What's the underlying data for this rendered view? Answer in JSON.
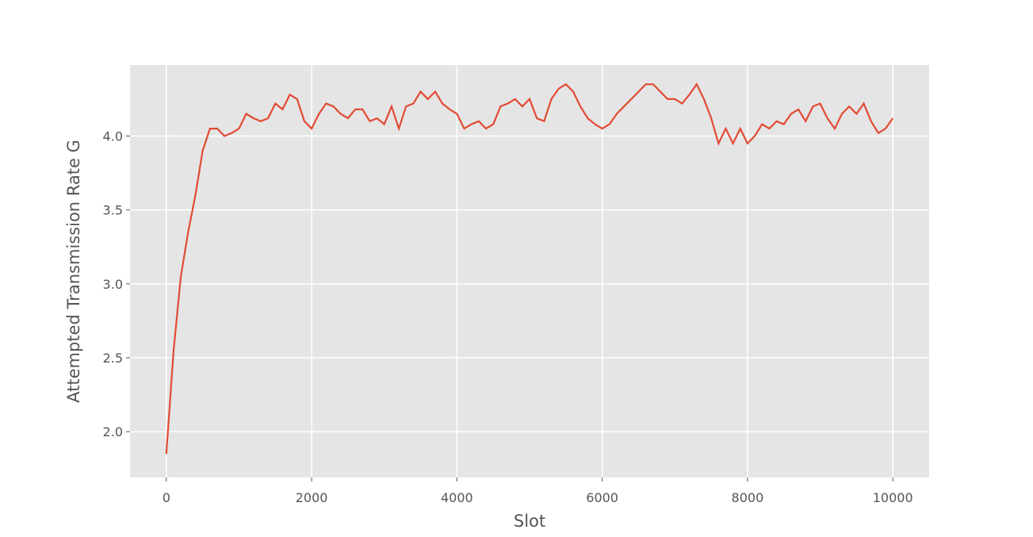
{
  "chart_data": {
    "type": "line",
    "xlabel": "Slot",
    "ylabel": "Attempted Transmission Rate G",
    "x": [
      0,
      100,
      200,
      300,
      400,
      500,
      600,
      700,
      800,
      900,
      1000,
      1100,
      1200,
      1300,
      1400,
      1500,
      1600,
      1700,
      1800,
      1900,
      2000,
      2100,
      2200,
      2300,
      2400,
      2500,
      2600,
      2700,
      2800,
      2900,
      3000,
      3100,
      3200,
      3300,
      3400,
      3500,
      3600,
      3700,
      3800,
      3900,
      4000,
      4100,
      4200,
      4300,
      4400,
      4500,
      4600,
      4700,
      4800,
      4900,
      5000,
      5100,
      5200,
      5300,
      5400,
      5500,
      5600,
      5700,
      5800,
      5900,
      6000,
      6100,
      6200,
      6300,
      6400,
      6500,
      6600,
      6700,
      6800,
      6900,
      7000,
      7100,
      7200,
      7300,
      7400,
      7500,
      7600,
      7700,
      7800,
      7900,
      8000,
      8100,
      8200,
      8300,
      8400,
      8500,
      8600,
      8700,
      8800,
      8900,
      9000,
      9100,
      9200,
      9300,
      9400,
      9500,
      9600,
      9700,
      9800,
      9900,
      10000
    ],
    "series": [
      {
        "color": "#e24a33",
        "values": [
          1.85,
          2.55,
          3.05,
          3.35,
          3.6,
          3.9,
          4.05,
          4.05,
          4.0,
          4.02,
          4.05,
          4.15,
          4.12,
          4.1,
          4.12,
          4.22,
          4.18,
          4.28,
          4.25,
          4.1,
          4.05,
          4.15,
          4.22,
          4.2,
          4.15,
          4.12,
          4.18,
          4.18,
          4.1,
          4.12,
          4.08,
          4.2,
          4.05,
          4.2,
          4.22,
          4.3,
          4.25,
          4.3,
          4.22,
          4.18,
          4.15,
          4.05,
          4.08,
          4.1,
          4.05,
          4.08,
          4.2,
          4.22,
          4.25,
          4.2,
          4.25,
          4.12,
          4.1,
          4.25,
          4.32,
          4.35,
          4.3,
          4.2,
          4.12,
          4.08,
          4.05,
          4.08,
          4.15,
          4.2,
          4.25,
          4.3,
          4.35,
          4.35,
          4.3,
          4.25,
          4.25,
          4.22,
          4.28,
          4.35,
          4.25,
          4.12,
          3.95,
          4.05,
          3.95,
          4.05,
          3.95,
          4.0,
          4.08,
          4.05,
          4.1,
          4.08,
          4.15,
          4.18,
          4.1,
          4.2,
          4.22,
          4.12,
          4.05,
          4.15,
          4.2,
          4.15,
          4.22,
          4.1,
          4.02,
          4.05,
          4.12
        ]
      }
    ],
    "xlim": [
      -500,
      10500
    ],
    "ylim": [
      1.69,
      4.48
    ],
    "xticks": [
      0,
      2000,
      4000,
      6000,
      8000,
      10000
    ],
    "yticks": [
      {
        "value": 2.0,
        "label": "2.0"
      },
      2.5,
      {
        "value": 3.0,
        "label": "3.0"
      },
      3.5,
      {
        "value": 4.0,
        "label": "4.0"
      }
    ],
    "grid": true,
    "background": "#e5e5e5"
  }
}
